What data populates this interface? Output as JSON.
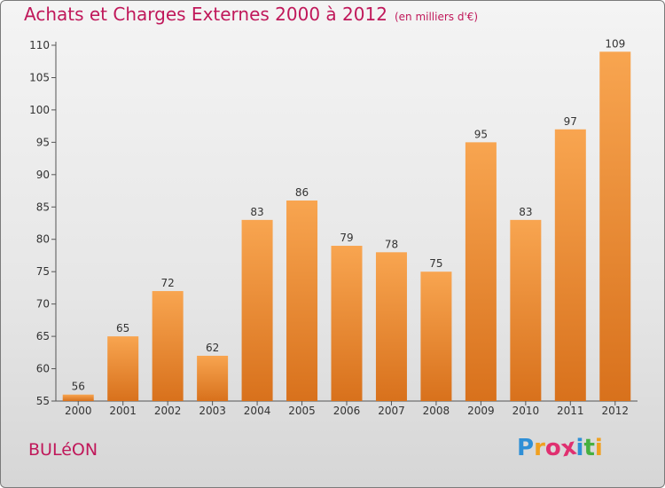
{
  "title": "Achats et Charges Externes 2000 à 2012",
  "unit": "(en milliers d'€)",
  "commune": "BULéON",
  "logo": {
    "text": "Proxiti",
    "letters": [
      "P",
      "r",
      "o",
      "x",
      "i",
      "t",
      "i"
    ],
    "colors": [
      "#2f8fd6",
      "#f0a020",
      "#e03070",
      "#e03070",
      "#2f8fd6",
      "#46b040",
      "#f0a020"
    ]
  },
  "chart_data": {
    "type": "bar",
    "title": "Achats et Charges Externes 2000 à 2012",
    "subtitle": "(en milliers d'€)",
    "categories": [
      "2000",
      "2001",
      "2002",
      "2003",
      "2004",
      "2005",
      "2006",
      "2007",
      "2008",
      "2009",
      "2010",
      "2011",
      "2012"
    ],
    "values": [
      56,
      65,
      72,
      62,
      83,
      86,
      79,
      78,
      75,
      95,
      83,
      97,
      109
    ],
    "ylim": [
      55,
      110
    ],
    "yticks": [
      55,
      60,
      65,
      70,
      75,
      80,
      85,
      90,
      95,
      100,
      105,
      110
    ],
    "grid": false,
    "colors": {
      "bar_top": "#f8a550",
      "bar_bottom": "#d8711c"
    }
  }
}
